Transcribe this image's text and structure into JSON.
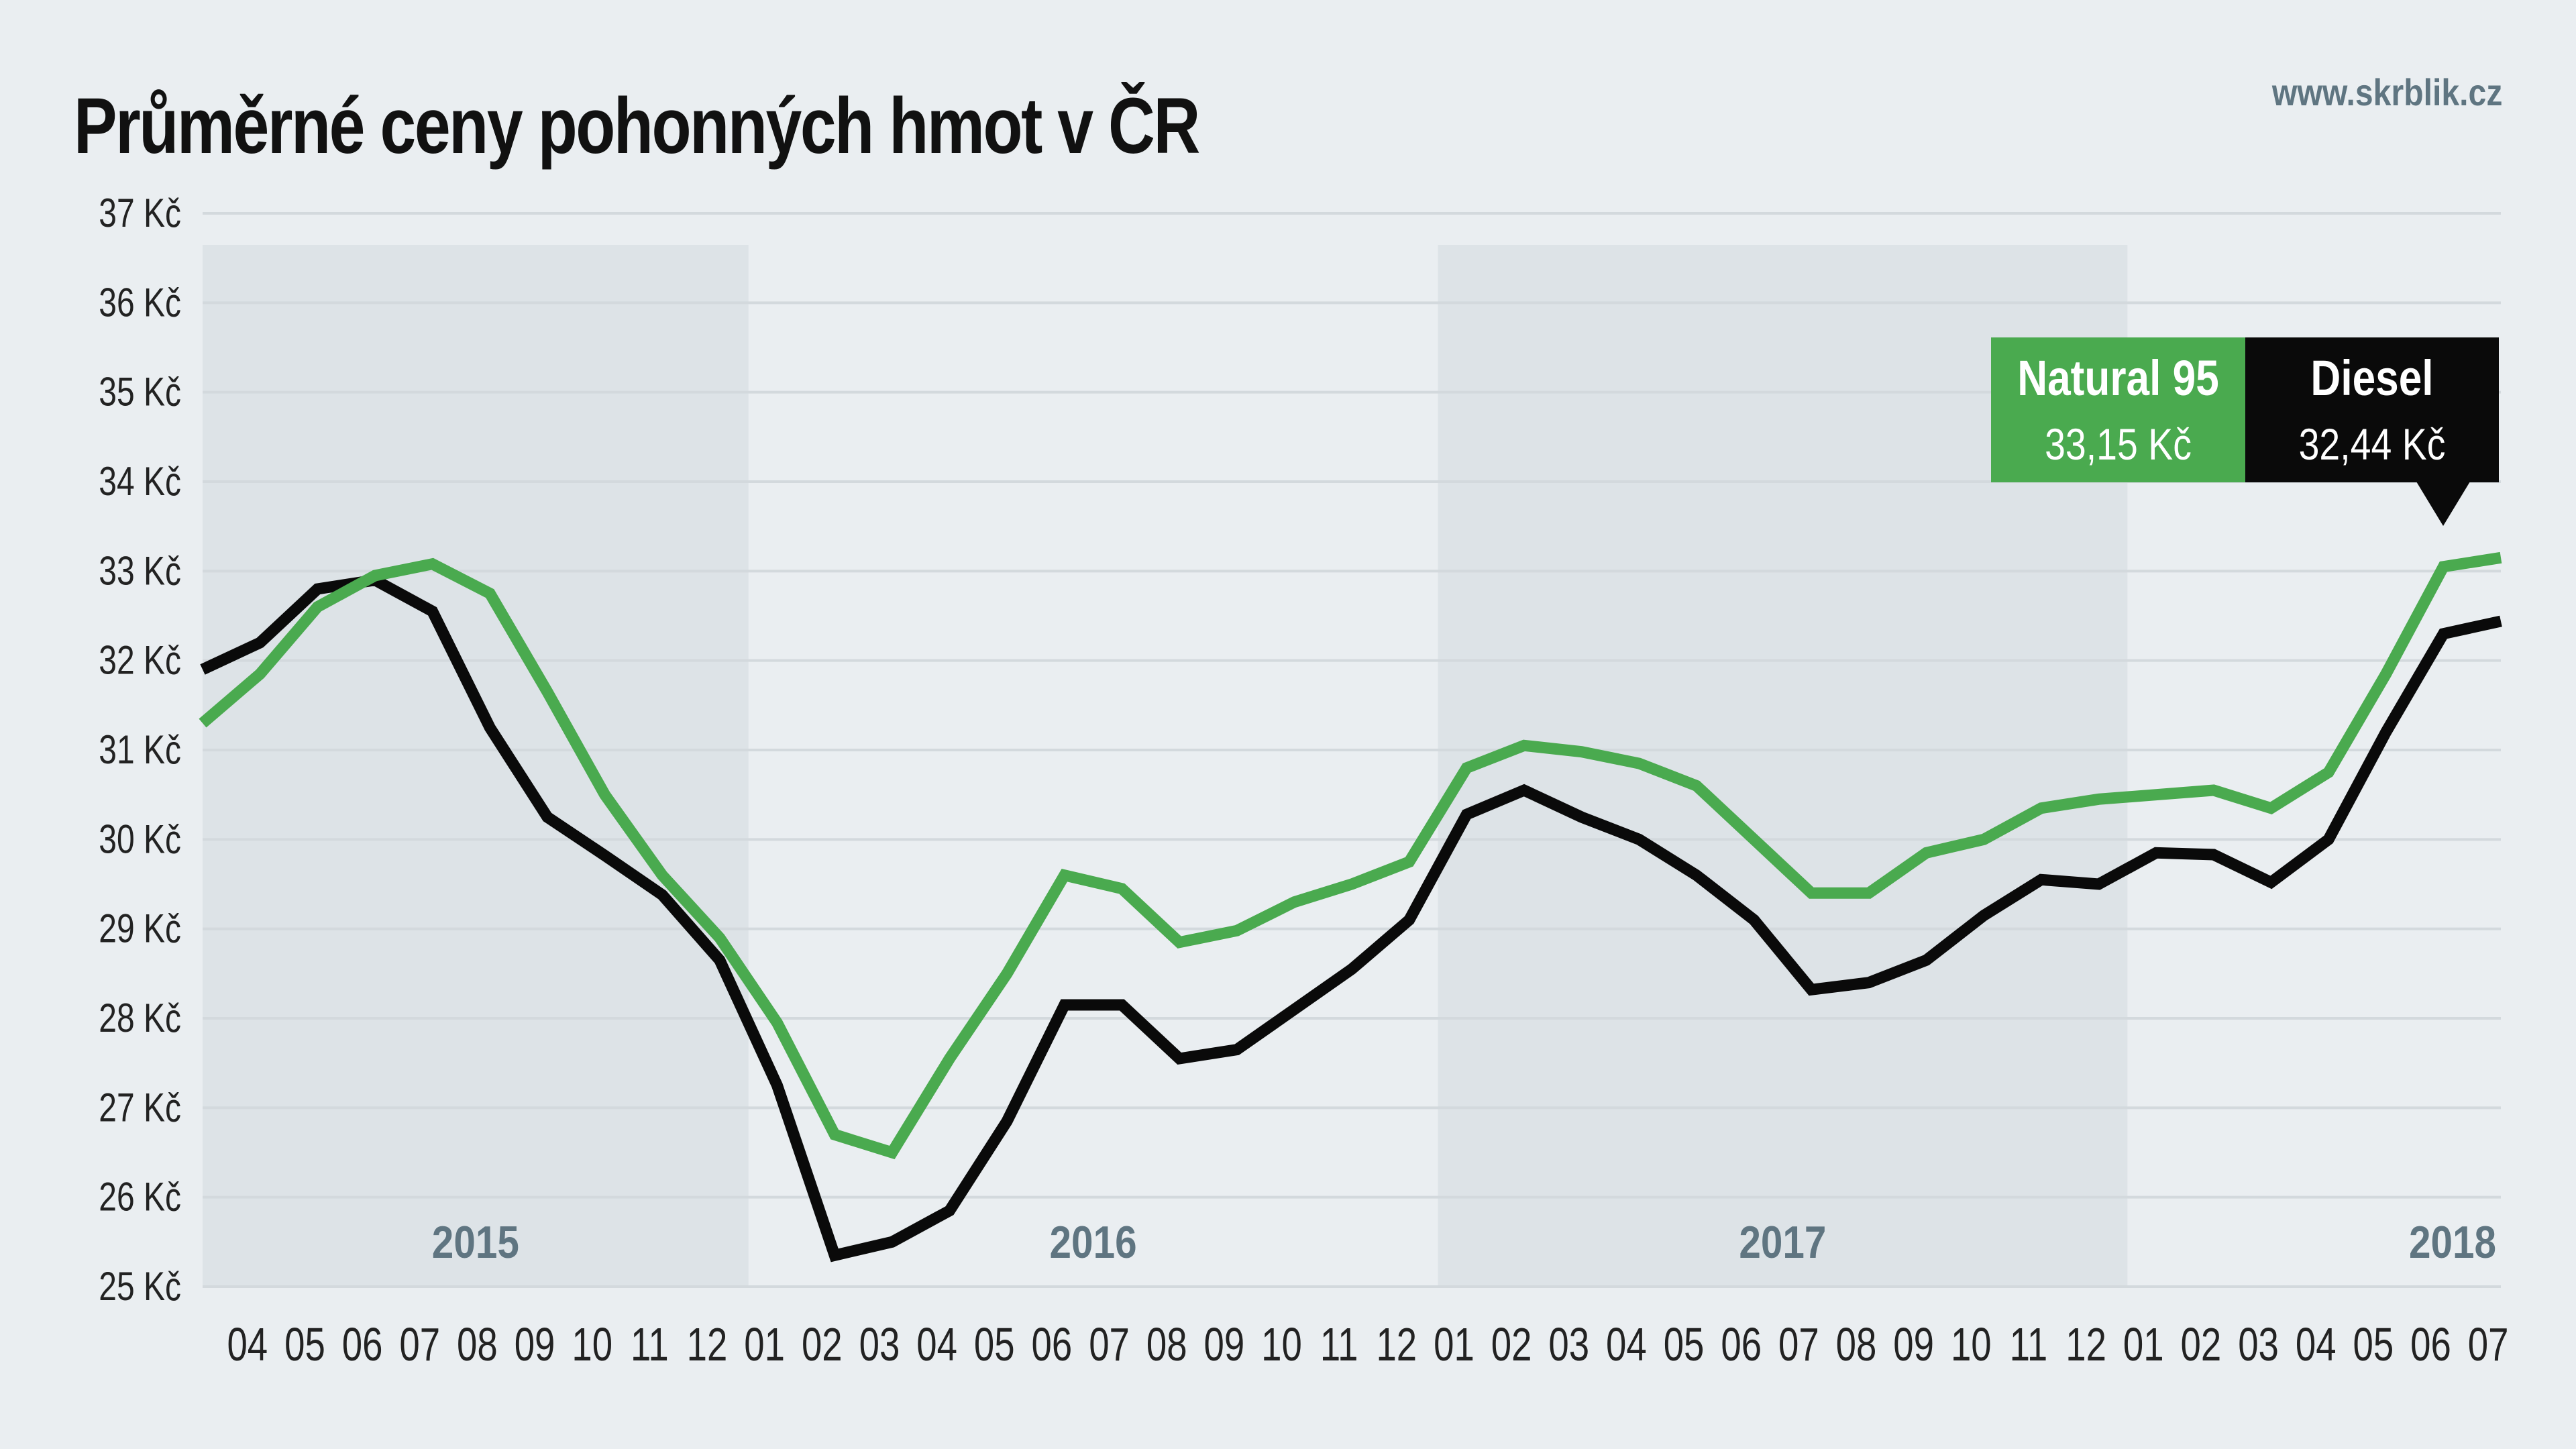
{
  "title": "Průměrné ceny pohonných hmot v ČR",
  "source": "www.skrblik.cz",
  "colors": {
    "background": "#eaeef1",
    "band": "#dde3e7",
    "grid": "#d3d9dd",
    "natural95": "#4aaa4f",
    "diesel": "#0a0a0a",
    "year_label": "#5f7581",
    "axis_text": "#222222"
  },
  "legend": {
    "natural95": {
      "name": "Natural 95",
      "value": "33,15 Kč"
    },
    "diesel": {
      "name": "Diesel",
      "value": "32,44 Kč"
    }
  },
  "chart_data": {
    "type": "line",
    "title": "Průměrné ceny pohonných hmot v ČR",
    "xlabel": "",
    "ylabel": "",
    "grid": true,
    "legend_position": "top-right",
    "ylim": [
      25,
      37
    ],
    "yticks": [
      25,
      26,
      27,
      28,
      29,
      30,
      31,
      32,
      33,
      34,
      35,
      36,
      37
    ],
    "ytick_labels": [
      "25 Kč",
      "26 Kč",
      "27 Kč",
      "28 Kč",
      "29 Kč",
      "30 Kč",
      "31 Kč",
      "32 Kč",
      "33 Kč",
      "34 Kč",
      "35 Kč",
      "36 Kč",
      "37 Kč"
    ],
    "x": [
      "2015-03",
      "2015-04",
      "2015-05",
      "2015-06",
      "2015-07",
      "2015-08",
      "2015-09",
      "2015-10",
      "2015-11",
      "2015-12",
      "2016-01",
      "2016-02",
      "2016-03",
      "2016-04",
      "2016-05",
      "2016-06",
      "2016-07",
      "2016-08",
      "2016-09",
      "2016-10",
      "2016-11",
      "2016-12",
      "2017-01",
      "2017-02",
      "2017-03",
      "2017-04",
      "2017-05",
      "2017-06",
      "2017-07",
      "2017-08",
      "2017-09",
      "2017-10",
      "2017-11",
      "2017-12",
      "2018-01",
      "2018-02",
      "2018-03",
      "2018-04",
      "2018-05",
      "2018-06",
      "2018-07"
    ],
    "month_labels": [
      "04",
      "05",
      "06",
      "07",
      "08",
      "09",
      "10",
      "11",
      "12",
      "01",
      "02",
      "03",
      "04",
      "05",
      "06",
      "07",
      "08",
      "09",
      "10",
      "11",
      "12",
      "01",
      "02",
      "03",
      "04",
      "05",
      "06",
      "07",
      "08",
      "09",
      "10",
      "11",
      "12",
      "01",
      "02",
      "03",
      "04",
      "05",
      "06",
      "07"
    ],
    "year_labels": [
      "2015",
      "2016",
      "2017",
      "2018"
    ],
    "series": [
      {
        "name": "Natural 95",
        "values": [
          31.3,
          31.85,
          32.6,
          32.95,
          33.08,
          32.75,
          31.65,
          30.5,
          29.6,
          28.9,
          27.95,
          26.7,
          26.5,
          27.55,
          28.5,
          29.6,
          29.45,
          28.85,
          28.98,
          29.3,
          29.5,
          29.75,
          30.8,
          31.05,
          30.98,
          30.85,
          30.6,
          30.0,
          29.4,
          29.4,
          29.85,
          30.0,
          30.35,
          30.45,
          30.5,
          30.55,
          30.35,
          30.75,
          31.85,
          33.05,
          33.15
        ]
      },
      {
        "name": "Diesel",
        "values": [
          31.9,
          32.2,
          32.8,
          32.9,
          32.55,
          31.25,
          30.25,
          29.82,
          29.38,
          28.65,
          27.25,
          25.35,
          25.5,
          25.85,
          26.85,
          28.15,
          28.15,
          27.55,
          27.65,
          28.1,
          28.55,
          29.1,
          30.28,
          30.55,
          30.25,
          30.0,
          29.6,
          29.1,
          28.32,
          28.4,
          28.65,
          29.15,
          29.55,
          29.5,
          29.85,
          29.83,
          29.52,
          30.0,
          31.2,
          32.3,
          32.44
        ]
      }
    ]
  }
}
